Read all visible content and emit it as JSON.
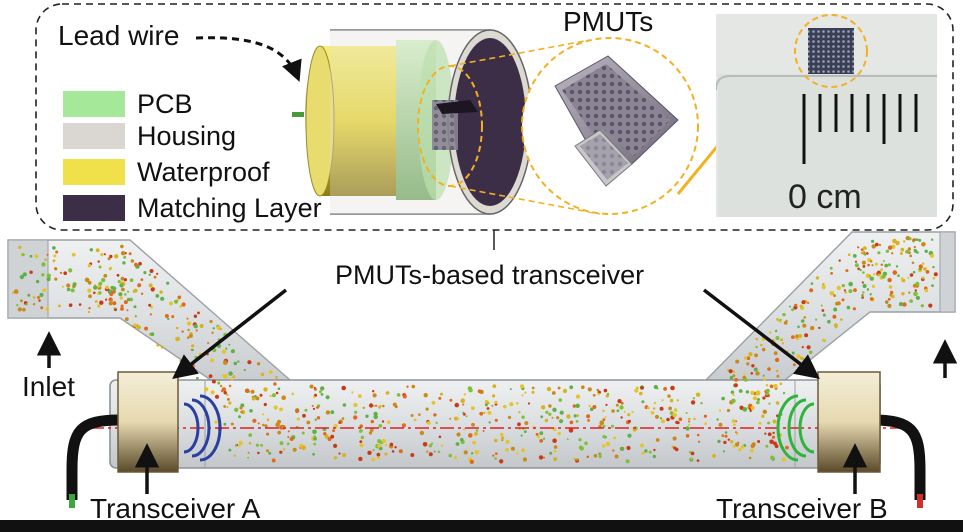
{
  "labels": {
    "lead_wire": "Lead wire",
    "pmuts": "PMUTs",
    "pmuts_transceiver": "PMUTs-based transceiver",
    "inlet": "Inlet",
    "transceiver_a": "Transceiver A",
    "transceiver_b": "Transceiver B",
    "scale": "0 cm"
  },
  "legend": [
    {
      "label": "PCB",
      "color": "#a6e89a"
    },
    {
      "label": "Housing",
      "color": "#dad7d2"
    },
    {
      "label": "Waterproof",
      "color": "#f0e04a"
    },
    {
      "label": "Matching Layer",
      "color": "#3d2e47"
    }
  ],
  "colors": {
    "inset_border": "#222222",
    "zoom_ring": "#f3b020",
    "wave_a": "#2a3fa0",
    "wave_b": "#2fb43b",
    "axis_line": "#e02020",
    "pipe": "#d7dadc"
  }
}
